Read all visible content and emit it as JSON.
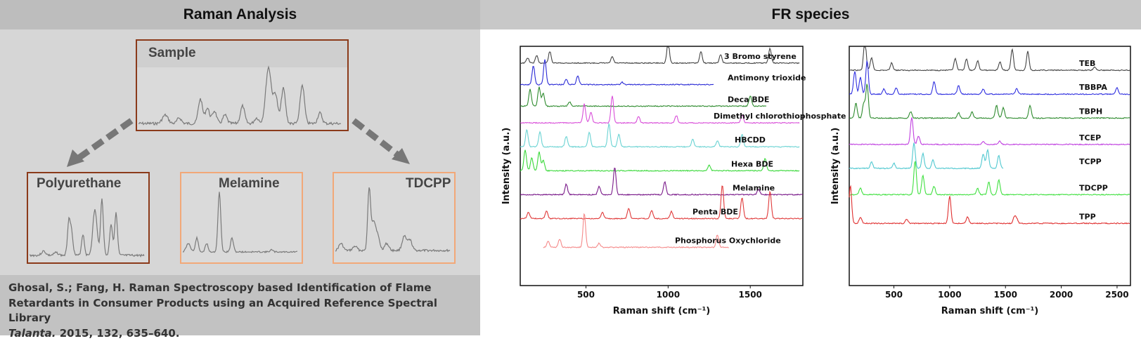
{
  "headers": {
    "left": "Raman Analysis",
    "right": "FR species"
  },
  "flow": {
    "sample_label": "Sample",
    "products": [
      "Polyurethane",
      "Melamine",
      "TDCPP"
    ]
  },
  "citation": {
    "line1": "Ghosal, S.; Fang, H. Raman Spectroscopy based Identification of Flame",
    "line2": "Retardants in Consumer Products using an Acquired Reference Spectral Library",
    "journal": "Talanta.",
    "details": " 2015, 132, 635–640."
  },
  "colors": {
    "brown_border": "#8b3a1a",
    "peach_border": "#f2a878",
    "spectrum_gray": "#7a7a7a"
  },
  "chart_data": [
    {
      "type": "line",
      "ylabel": "Intensity (a.u.)",
      "xlabel": "Raman shift (cm⁻¹)",
      "xlim": [
        100,
        1820
      ],
      "xticks": [
        500,
        1000,
        1500
      ],
      "series": [
        {
          "name": "3 Bromo styrene",
          "color": "#444444",
          "baseline": 0.07,
          "xrange": [
            100,
            1800
          ],
          "peaks": [
            [
              145,
              0.25
            ],
            [
              200,
              0.35
            ],
            [
              280,
              0.55
            ],
            [
              660,
              0.3
            ],
            [
              1000,
              1.0
            ],
            [
              1200,
              0.55
            ],
            [
              1320,
              0.4
            ],
            [
              1620,
              0.7
            ]
          ]
        },
        {
          "name": "Antimony trioxide",
          "color": "#2a2ad6",
          "baseline": 0.16,
          "xrange": [
            100,
            1280
          ],
          "peaks": [
            [
              180,
              0.9
            ],
            [
              250,
              1.2
            ],
            [
              380,
              0.25
            ],
            [
              450,
              0.4
            ],
            [
              720,
              0.12
            ]
          ]
        },
        {
          "name": "Deca BDE",
          "color": "#2e8b2e",
          "baseline": 0.25,
          "xrange": [
            100,
            1600
          ],
          "peaks": [
            [
              160,
              0.8
            ],
            [
              215,
              0.9
            ],
            [
              240,
              0.6
            ],
            [
              400,
              0.2
            ],
            [
              1500,
              0.5
            ]
          ]
        },
        {
          "name": "Dimethyl chlorothiophosphate",
          "color": "#d94fd9",
          "baseline": 0.32,
          "xrange": [
            100,
            1800
          ],
          "peaks": [
            [
              490,
              0.9
            ],
            [
              530,
              0.5
            ],
            [
              660,
              1.3
            ],
            [
              820,
              0.3
            ],
            [
              1050,
              0.35
            ],
            [
              1450,
              0.4
            ]
          ]
        },
        {
          "name": "HBCDD",
          "color": "#6ad3d3",
          "baseline": 0.42,
          "xrange": [
            100,
            1800
          ],
          "peaks": [
            [
              140,
              0.8
            ],
            [
              220,
              0.7
            ],
            [
              380,
              0.5
            ],
            [
              520,
              0.7
            ],
            [
              640,
              1.1
            ],
            [
              700,
              0.6
            ],
            [
              1150,
              0.35
            ],
            [
              1300,
              0.3
            ],
            [
              1450,
              0.6
            ]
          ]
        },
        {
          "name": "Hexa BDE",
          "color": "#3ad83a",
          "baseline": 0.52,
          "xrange": [
            100,
            1800
          ],
          "peaks": [
            [
              130,
              1.0
            ],
            [
              170,
              0.6
            ],
            [
              215,
              0.9
            ],
            [
              240,
              0.5
            ],
            [
              1250,
              0.25
            ],
            [
              1590,
              0.6
            ]
          ]
        },
        {
          "name": "Melamine",
          "color": "#7a1a8a",
          "baseline": 0.62,
          "xrange": [
            100,
            1820
          ],
          "peaks": [
            [
              380,
              0.5
            ],
            [
              580,
              0.4
            ],
            [
              675,
              1.3
            ],
            [
              980,
              0.6
            ],
            [
              1550,
              0.25
            ]
          ]
        },
        {
          "name": "Penta BDE",
          "color": "#e03a3a",
          "baseline": 0.72,
          "xrange": [
            100,
            1820
          ],
          "peaks": [
            [
              150,
              0.3
            ],
            [
              260,
              0.35
            ],
            [
              600,
              0.3
            ],
            [
              760,
              0.5
            ],
            [
              900,
              0.4
            ],
            [
              1020,
              0.35
            ],
            [
              1330,
              1.6
            ],
            [
              1450,
              1.0
            ],
            [
              1620,
              1.3
            ]
          ]
        },
        {
          "name": "Phosphorus Oxychloride",
          "color": "#f58a8a",
          "baseline": 0.84,
          "xrange": [
            240,
            1370
          ],
          "peaks": [
            [
              270,
              0.3
            ],
            [
              340,
              0.4
            ],
            [
              490,
              1.6
            ],
            [
              580,
              0.2
            ],
            [
              1300,
              0.6
            ]
          ]
        }
      ]
    },
    {
      "type": "line",
      "ylabel": "Intensity (a.u.)",
      "xlabel": "Raman shift (cm⁻¹)",
      "xlim": [
        100,
        2620
      ],
      "xticks": [
        500,
        1000,
        1500,
        2000,
        2500
      ],
      "series": [
        {
          "name": "TEB",
          "color": "#444444",
          "baseline": 0.1,
          "xrange": [
            100,
            2620
          ],
          "peaks": [
            [
              240,
              1.5
            ],
            [
              300,
              0.6
            ],
            [
              480,
              0.35
            ],
            [
              1050,
              0.55
            ],
            [
              1150,
              0.55
            ],
            [
              1250,
              0.45
            ],
            [
              1450,
              0.4
            ],
            [
              1560,
              1.0
            ],
            [
              1700,
              0.9
            ],
            [
              2300,
              0.15
            ]
          ]
        },
        {
          "name": "TBBPA",
          "color": "#3030e0",
          "baseline": 0.2,
          "xrange": [
            100,
            2620
          ],
          "peaks": [
            [
              150,
              1.1
            ],
            [
              200,
              0.8
            ],
            [
              260,
              1.6
            ],
            [
              410,
              0.25
            ],
            [
              520,
              0.3
            ],
            [
              860,
              0.6
            ],
            [
              1080,
              0.4
            ],
            [
              1300,
              0.25
            ],
            [
              1600,
              0.25
            ],
            [
              2500,
              0.3
            ]
          ]
        },
        {
          "name": "TBPH",
          "color": "#2e8b2e",
          "baseline": 0.3,
          "xrange": [
            100,
            2620
          ],
          "peaks": [
            [
              160,
              0.7
            ],
            [
              230,
              0.7
            ],
            [
              260,
              1.6
            ],
            [
              650,
              0.3
            ],
            [
              1080,
              0.25
            ],
            [
              1200,
              0.3
            ],
            [
              1420,
              0.6
            ],
            [
              1480,
              0.5
            ],
            [
              1720,
              0.6
            ]
          ]
        },
        {
          "name": "TCEP",
          "color": "#c040e0",
          "baseline": 0.41,
          "xrange": [
            100,
            2620
          ],
          "peaks": [
            [
              660,
              1.3
            ],
            [
              720,
              0.4
            ],
            [
              1300,
              0.15
            ],
            [
              1450,
              0.15
            ]
          ]
        },
        {
          "name": "TCPP",
          "color": "#50c8d0",
          "baseline": 0.51,
          "xrange": [
            100,
            1480
          ],
          "peaks": [
            [
              300,
              0.3
            ],
            [
              500,
              0.25
            ],
            [
              680,
              1.2
            ],
            [
              760,
              0.7
            ],
            [
              850,
              0.4
            ],
            [
              1300,
              0.7
            ],
            [
              1340,
              0.9
            ],
            [
              1440,
              0.6
            ]
          ]
        },
        {
          "name": "TDCPP",
          "color": "#40e040",
          "baseline": 0.62,
          "xrange": [
            100,
            2620
          ],
          "peaks": [
            [
              200,
              0.3
            ],
            [
              690,
              1.6
            ],
            [
              760,
              0.9
            ],
            [
              860,
              0.4
            ],
            [
              1250,
              0.3
            ],
            [
              1350,
              0.6
            ],
            [
              1440,
              0.7
            ]
          ]
        },
        {
          "name": "TPP",
          "color": "#e03030",
          "baseline": 0.74,
          "xrange": [
            100,
            2620
          ],
          "peaks": [
            [
              110,
              1.8
            ],
            [
              200,
              0.3
            ],
            [
              615,
              0.2
            ],
            [
              1000,
              1.3
            ],
            [
              1160,
              0.3
            ],
            [
              1580,
              0.3
            ],
            [
              1600,
              0.2
            ]
          ]
        }
      ]
    }
  ]
}
